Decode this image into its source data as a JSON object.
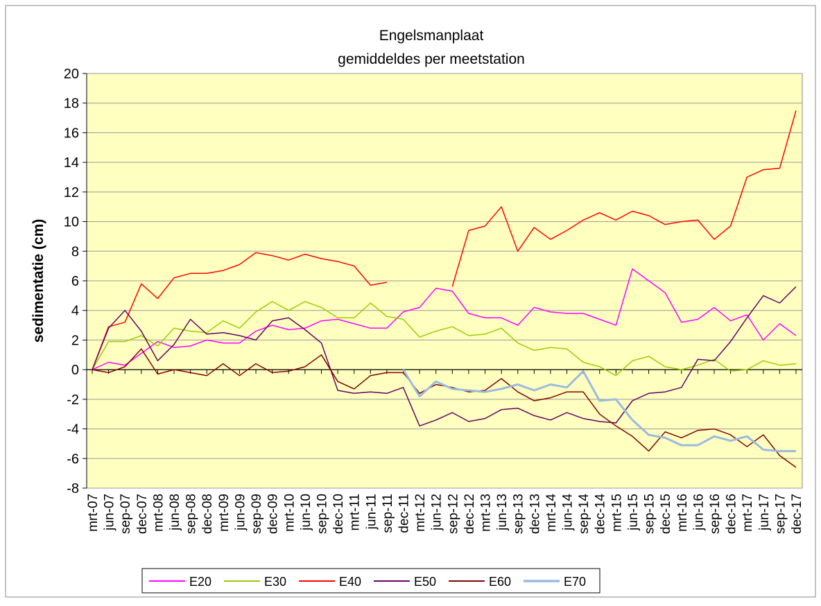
{
  "chart_data": {
    "type": "line",
    "title": "Engelsmanplaat",
    "subtitle": "gemiddeldes per meetstation",
    "y_label": "sedimentatie (cm)",
    "categories": [
      "mrt-07",
      "jun-07",
      "sep-07",
      "dec-07",
      "mrt-08",
      "jun-08",
      "sep-08",
      "dec-08",
      "mrt-09",
      "jun-09",
      "sep-09",
      "dec-09",
      "mrt-10",
      "jun-10",
      "sep-10",
      "dec-10",
      "mrt-11",
      "jun-11",
      "sep-11",
      "dec-11",
      "mrt-12",
      "jun-12",
      "sep-12",
      "dec-12",
      "mrt-13",
      "jun-13",
      "sep-13",
      "dec-13",
      "mrt-14",
      "jun-14",
      "sep-14",
      "dec-14",
      "mrt-15",
      "jun-15",
      "sep-15",
      "dec-15",
      "mrt-16",
      "jun-16",
      "sep-16",
      "dec-16",
      "mrt-17",
      "jun-17",
      "sep-17",
      "dec-17"
    ],
    "series": [
      {
        "name": "E20",
        "color": "#ff00ff",
        "width": 1.5,
        "values": [
          0,
          0.5,
          0.3,
          1.1,
          1.9,
          1.5,
          1.6,
          2.0,
          1.8,
          1.8,
          2.6,
          3.0,
          2.7,
          2.8,
          3.3,
          3.4,
          3.1,
          2.8,
          2.8,
          3.9,
          4.2,
          5.5,
          5.3,
          3.8,
          3.5,
          3.5,
          3.0,
          4.2,
          3.9,
          3.8,
          3.8,
          3.4,
          3.0,
          6.8,
          6.0,
          5.2,
          3.2,
          3.4,
          4.2,
          3.3,
          3.7,
          2.0,
          3.1,
          2.3
        ]
      },
      {
        "name": "E30",
        "color": "#99cc00",
        "width": 1.5,
        "values": [
          0,
          1.9,
          1.9,
          2.3,
          1.6,
          2.8,
          2.6,
          2.5,
          3.3,
          2.8,
          3.9,
          4.6,
          4.0,
          4.6,
          4.2,
          3.5,
          3.5,
          4.5,
          3.6,
          3.4,
          2.2,
          2.6,
          2.9,
          2.3,
          2.4,
          2.8,
          1.8,
          1.3,
          1.5,
          1.4,
          0.5,
          0.2,
          -0.4,
          0.6,
          0.9,
          0.2,
          0.0,
          0.3,
          0.7,
          -0.1,
          0.0,
          0.6,
          0.3,
          0.4
        ]
      },
      {
        "name": "E40",
        "color": "#ff0000",
        "width": 1.5,
        "values": [
          0,
          2.9,
          3.2,
          5.8,
          4.8,
          6.2,
          6.5,
          6.5,
          6.7,
          7.1,
          7.9,
          7.7,
          7.4,
          7.8,
          7.5,
          7.3,
          7.0,
          5.7,
          5.9,
          null,
          null,
          null,
          5.6,
          9.4,
          9.7,
          11.0,
          8.0,
          9.6,
          8.8,
          9.4,
          10.1,
          10.6,
          10.1,
          10.7,
          10.4,
          9.8,
          10.0,
          10.1,
          8.8,
          9.7,
          13.0,
          13.5,
          13.6,
          17.5
        ]
      },
      {
        "name": "E50",
        "color": "#660066",
        "width": 1.5,
        "values": [
          0,
          2.8,
          4.0,
          2.6,
          0.6,
          1.7,
          3.4,
          2.4,
          2.5,
          2.3,
          2.0,
          3.3,
          3.5,
          2.7,
          1.8,
          -1.4,
          -1.6,
          -1.5,
          -1.6,
          -1.2,
          -3.8,
          -3.4,
          -2.9,
          -3.5,
          -3.3,
          -2.7,
          -2.6,
          -3.1,
          -3.4,
          -2.9,
          -3.3,
          -3.5,
          -3.6,
          -2.1,
          -1.6,
          -1.5,
          -1.2,
          0.7,
          0.6,
          1.9,
          3.5,
          5.0,
          4.5,
          5.6
        ]
      },
      {
        "name": "E60",
        "color": "#800000",
        "width": 1.5,
        "values": [
          0,
          -0.2,
          0.2,
          1.4,
          -0.3,
          0.0,
          -0.2,
          -0.4,
          0.4,
          -0.4,
          0.4,
          -0.2,
          -0.1,
          0.2,
          1.0,
          -0.8,
          -1.3,
          -0.4,
          -0.2,
          -0.2,
          -1.6,
          -1.0,
          -1.2,
          -1.5,
          -1.4,
          -0.6,
          -1.5,
          -2.1,
          -1.9,
          -1.5,
          -1.5,
          -3.0,
          -3.8,
          -4.5,
          -5.5,
          -4.2,
          -4.6,
          -4.1,
          -4.0,
          -4.4,
          -5.2,
          -4.4,
          -5.8,
          -6.6
        ]
      },
      {
        "name": "E70",
        "color": "#99bbdd",
        "width": 3,
        "values": [
          null,
          null,
          null,
          null,
          null,
          null,
          null,
          null,
          null,
          null,
          null,
          null,
          null,
          null,
          null,
          null,
          null,
          null,
          null,
          0,
          -1.8,
          -0.8,
          -1.3,
          -1.4,
          -1.5,
          -1.3,
          -1.0,
          -1.4,
          -1.0,
          -1.2,
          -0.1,
          -2.1,
          -2.0,
          -3.4,
          -4.4,
          -4.6,
          -5.1,
          -5.1,
          -4.5,
          -4.8,
          -4.5,
          -5.4,
          -5.5,
          -5.5
        ]
      }
    ],
    "ylim": [
      -8,
      20
    ],
    "yticks": [
      -8,
      -6,
      -4,
      -2,
      0,
      2,
      4,
      6,
      8,
      10,
      12,
      14,
      16,
      18,
      20
    ],
    "grid": true,
    "background": "#ffffc0",
    "legend": "bottom"
  }
}
